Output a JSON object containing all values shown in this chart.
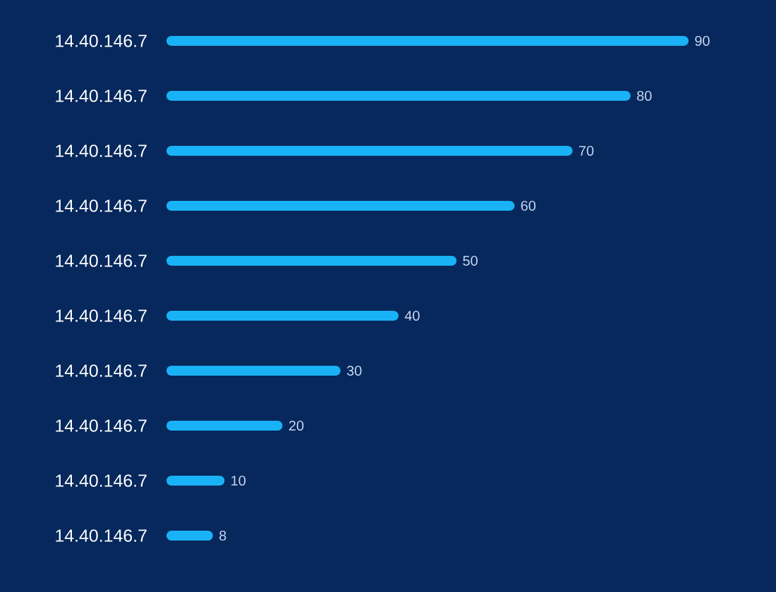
{
  "chart_data": {
    "type": "bar",
    "orientation": "horizontal",
    "categories": [
      "14.40.146.7",
      "14.40.146.7",
      "14.40.146.7",
      "14.40.146.7",
      "14.40.146.7",
      "14.40.146.7",
      "14.40.146.7",
      "14.40.146.7",
      "14.40.146.7",
      "14.40.146.7"
    ],
    "values": [
      90,
      80,
      70,
      60,
      50,
      40,
      30,
      20,
      10,
      8
    ],
    "color": "#1ab2f6",
    "data_labels": true
  }
}
